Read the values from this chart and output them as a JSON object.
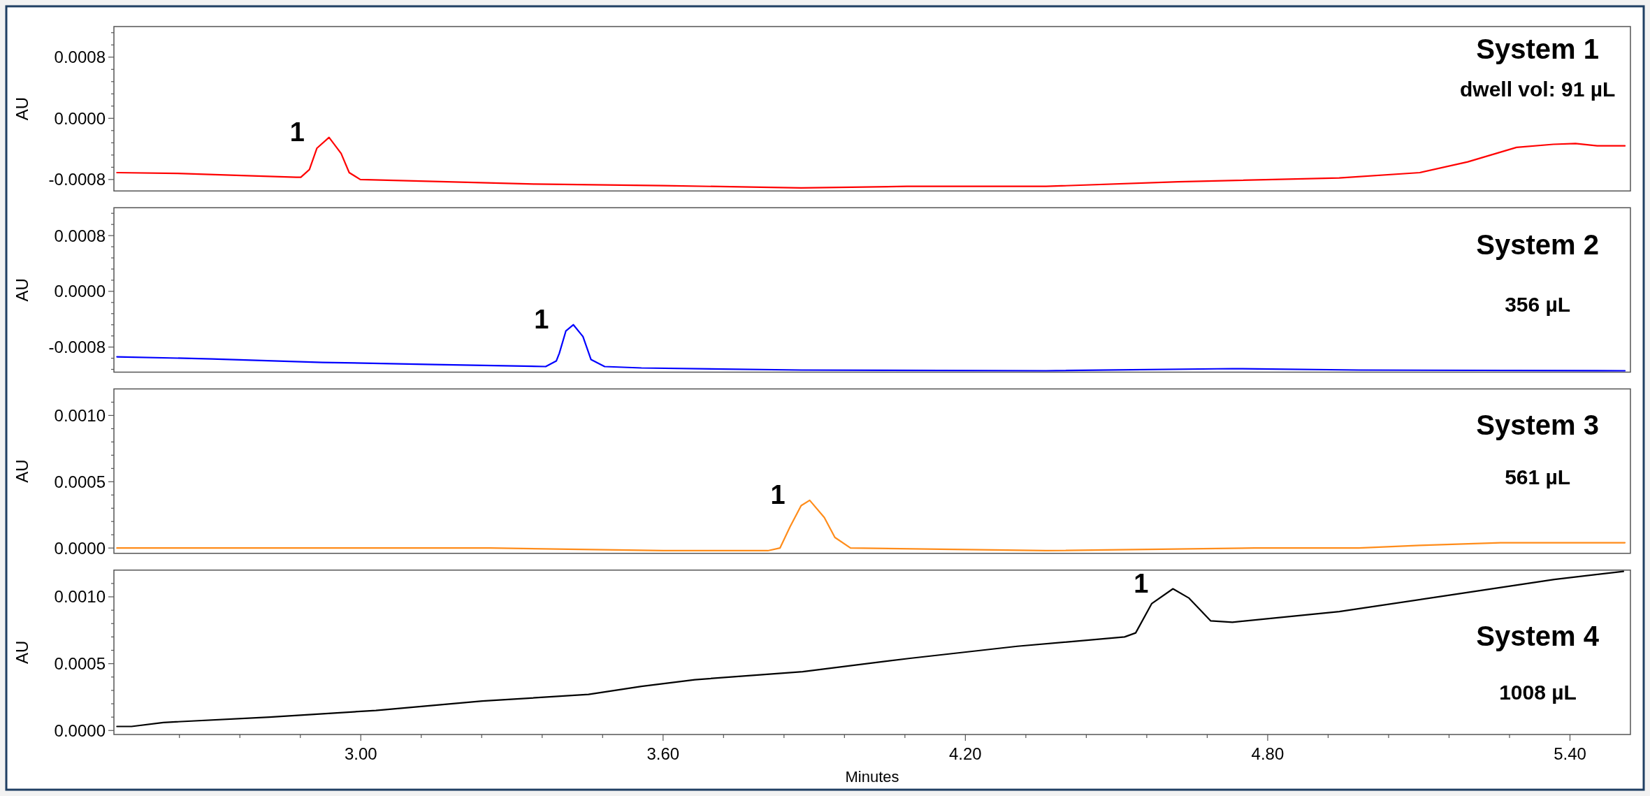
{
  "chart_data": [
    {
      "type": "line",
      "title": "System 1",
      "subtitle": "dwell vol: 91 µL",
      "ylabel": "AU",
      "tick_labels": "y",
      "xlim": [
        2.51,
        5.52
      ],
      "ylim": [
        -0.00095,
        0.0012
      ],
      "yticks": [
        {
          "value": -0.0008,
          "label": "-0.0008"
        },
        {
          "value": -0.00064,
          "label": null
        },
        {
          "value": -0.00048,
          "label": null
        },
        {
          "value": -0.00032,
          "label": null
        },
        {
          "value": -0.00016,
          "label": null
        },
        {
          "value": 0,
          "label": "0.0000"
        },
        {
          "value": 0.00016,
          "label": null
        },
        {
          "value": 0.00032,
          "label": null
        },
        {
          "value": 0.00048,
          "label": null
        },
        {
          "value": 0.00064,
          "label": null
        },
        {
          "value": 0.0008,
          "label": "0.0008"
        },
        {
          "value": 0.00096,
          "label": null
        },
        {
          "value": 0.00112,
          "label": null
        }
      ],
      "annotations": [
        {
          "text": "1",
          "x": 2.937,
          "y": -0.00025
        }
      ],
      "series": [
        {
          "color": "#ff0000",
          "x": [
            2.516,
            2.636,
            2.774,
            2.872,
            2.881,
            2.898,
            2.913,
            2.937,
            2.961,
            2.977,
            2.999,
            3.119,
            3.346,
            3.601,
            3.874,
            4.084,
            4.36,
            4.622,
            4.942,
            5.102,
            5.197,
            5.294,
            5.367,
            5.411,
            5.454,
            5.509
          ],
          "values": [
            -0.00071,
            -0.00072,
            -0.00075,
            -0.00077,
            -0.00077,
            -0.00067,
            -0.00039,
            -0.00025,
            -0.00046,
            -0.00071,
            -0.0008,
            -0.00082,
            -0.00086,
            -0.00088,
            -0.00091,
            -0.00089,
            -0.00089,
            -0.00083,
            -0.00078,
            -0.00071,
            -0.00057,
            -0.00038,
            -0.00034,
            -0.00033,
            -0.00036,
            -0.00036
          ]
        }
      ]
    },
    {
      "type": "line",
      "title": "System 2",
      "subtitle": "356 µL",
      "ylabel": "AU",
      "tick_labels": "y",
      "xlim": [
        2.51,
        5.52
      ],
      "ylim": [
        -0.00116,
        0.0012
      ],
      "yticks": [
        {
          "value": -0.00112,
          "label": null
        },
        {
          "value": -0.00096,
          "label": null
        },
        {
          "value": -0.0008,
          "label": "-0.0008"
        },
        {
          "value": -0.00064,
          "label": null
        },
        {
          "value": -0.00048,
          "label": null
        },
        {
          "value": -0.00032,
          "label": null
        },
        {
          "value": -0.00016,
          "label": null
        },
        {
          "value": 0,
          "label": "0.0000"
        },
        {
          "value": 0.00016,
          "label": null
        },
        {
          "value": 0.00032,
          "label": null
        },
        {
          "value": 0.00048,
          "label": null
        },
        {
          "value": 0.00064,
          "label": null
        },
        {
          "value": 0.0008,
          "label": "0.0008"
        },
        {
          "value": 0.00096,
          "label": null
        },
        {
          "value": 0.00112,
          "label": null
        }
      ],
      "annotations": [
        {
          "text": "1",
          "x": 3.422,
          "y": -0.00048
        }
      ],
      "series": [
        {
          "color": "#0000ff",
          "x": [
            2.516,
            2.705,
            2.924,
            3.146,
            3.367,
            3.388,
            3.394,
            3.407,
            3.422,
            3.441,
            3.457,
            3.484,
            3.557,
            3.874,
            4.36,
            4.73,
            4.981,
            5.509
          ],
          "values": [
            -0.00094,
            -0.00097,
            -0.00102,
            -0.00105,
            -0.00108,
            -0.001,
            -0.00089,
            -0.00057,
            -0.00048,
            -0.00065,
            -0.00098,
            -0.00108,
            -0.0011,
            -0.00113,
            -0.00114,
            -0.00111,
            -0.00113,
            -0.00114
          ]
        }
      ]
    },
    {
      "type": "line",
      "title": "System 3",
      "subtitle": "561 µL",
      "ylabel": "AU",
      "tick_labels": "y",
      "xlim": [
        2.51,
        5.52
      ],
      "ylim": [
        -4e-05,
        0.0012
      ],
      "yticks": [
        {
          "value": 0,
          "label": "0.0000"
        },
        {
          "value": 0.0001,
          "label": null
        },
        {
          "value": 0.0002,
          "label": null
        },
        {
          "value": 0.0003,
          "label": null
        },
        {
          "value": 0.0004,
          "label": null
        },
        {
          "value": 0.0005,
          "label": "0.0005"
        },
        {
          "value": 0.0006,
          "label": null
        },
        {
          "value": 0.0007,
          "label": null
        },
        {
          "value": 0.0008,
          "label": null
        },
        {
          "value": 0.0009,
          "label": null
        },
        {
          "value": 0.001,
          "label": "0.0010"
        },
        {
          "value": 0.0011,
          "label": null
        }
      ],
      "annotations": [
        {
          "text": "1",
          "x": 3.891,
          "y": 0.00036
        }
      ],
      "series": [
        {
          "color": "#ff8c1a",
          "x": [
            2.516,
            2.981,
            3.257,
            3.601,
            3.808,
            3.832,
            3.852,
            3.874,
            3.891,
            3.92,
            3.941,
            3.972,
            4.36,
            4.774,
            4.981,
            5.102,
            5.262,
            5.509
          ],
          "values": [
            0,
            0,
            0,
            -2e-05,
            -2e-05,
            0,
            0.00016,
            0.00032,
            0.00036,
            0.00023,
            8e-05,
            0,
            -2e-05,
            0,
            0,
            2e-05,
            4e-05,
            4e-05
          ]
        }
      ]
    },
    {
      "type": "line",
      "title": "System 4",
      "subtitle": "1008 µL",
      "ylabel": "AU",
      "xlabel": "Minutes",
      "xlim": [
        2.51,
        5.52
      ],
      "xticks": [
        {
          "value": 2.64,
          "label": null
        },
        {
          "value": 2.76,
          "label": null
        },
        {
          "value": 2.88,
          "label": null
        },
        {
          "value": 3.0,
          "label": "3.00"
        },
        {
          "value": 3.12,
          "label": null
        },
        {
          "value": 3.24,
          "label": null
        },
        {
          "value": 3.36,
          "label": null
        },
        {
          "value": 3.48,
          "label": null
        },
        {
          "value": 3.6,
          "label": "3.60"
        },
        {
          "value": 3.72,
          "label": null
        },
        {
          "value": 3.84,
          "label": null
        },
        {
          "value": 3.96,
          "label": null
        },
        {
          "value": 4.08,
          "label": null
        },
        {
          "value": 4.2,
          "label": "4.20"
        },
        {
          "value": 4.32,
          "label": null
        },
        {
          "value": 4.44,
          "label": null
        },
        {
          "value": 4.56,
          "label": null
        },
        {
          "value": 4.68,
          "label": null
        },
        {
          "value": 4.8,
          "label": "4.80"
        },
        {
          "value": 4.92,
          "label": null
        },
        {
          "value": 5.04,
          "label": null
        },
        {
          "value": 5.16,
          "label": null
        },
        {
          "value": 5.28,
          "label": null
        },
        {
          "value": 5.4,
          "label": "5.40"
        }
      ],
      "ylim": [
        -3e-05,
        0.0012
      ],
      "yticks": [
        {
          "value": 0,
          "label": "0.0000"
        },
        {
          "value": 0.0001,
          "label": null
        },
        {
          "value": 0.0002,
          "label": null
        },
        {
          "value": 0.0003,
          "label": null
        },
        {
          "value": 0.0004,
          "label": null
        },
        {
          "value": 0.0005,
          "label": "0.0005"
        },
        {
          "value": 0.0006,
          "label": null
        },
        {
          "value": 0.0007,
          "label": null
        },
        {
          "value": 0.0008,
          "label": null
        },
        {
          "value": 0.0009,
          "label": null
        },
        {
          "value": 0.001,
          "label": "0.0010"
        },
        {
          "value": 0.0011,
          "label": null
        }
      ],
      "annotations": [
        {
          "text": "1",
          "x": 4.612,
          "y": 0.00106
        }
      ],
      "series": [
        {
          "color": "#000000",
          "x": [
            2.516,
            2.545,
            2.608,
            2.819,
            3.03,
            3.241,
            3.452,
            3.557,
            3.663,
            3.877,
            4.09,
            4.303,
            4.516,
            4.538,
            4.57,
            4.612,
            4.644,
            4.687,
            4.73,
            4.942,
            5.156,
            5.369,
            5.506
          ],
          "values": [
            3e-05,
            3e-05,
            6e-05,
            0.0001,
            0.00015,
            0.00022,
            0.00027,
            0.00033,
            0.00038,
            0.00044,
            0.00054,
            0.00063,
            0.0007,
            0.00073,
            0.00095,
            0.00106,
            0.00099,
            0.00082,
            0.00081,
            0.00089,
            0.00101,
            0.00113,
            0.00119
          ]
        }
      ]
    }
  ]
}
